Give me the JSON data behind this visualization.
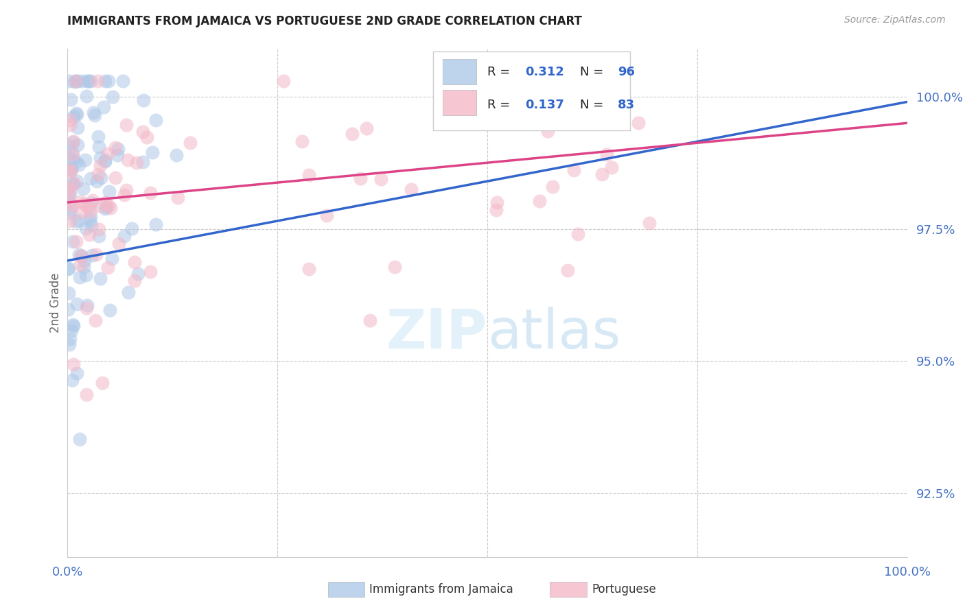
{
  "title": "IMMIGRANTS FROM JAMAICA VS PORTUGUESE 2ND GRADE CORRELATION CHART",
  "source": "Source: ZipAtlas.com",
  "ylabel": "2nd Grade",
  "R1": 0.312,
  "N1": 96,
  "R2": 0.137,
  "N2": 83,
  "color1": "#aec8e8",
  "color2": "#f4b8c8",
  "trendline1_color": "#3366cc",
  "trendline2_color": "#dd4488",
  "legend_label1": "Immigrants from Jamaica",
  "legend_label2": "Portuguese",
  "xmin": 0.0,
  "xmax": 100.0,
  "ymin": 91.3,
  "ymax": 100.9,
  "yticks": [
    92.5,
    95.0,
    97.5,
    100.0
  ],
  "ytick_labels": [
    "92.5%",
    "95.0%",
    "97.5%",
    "100.0%"
  ],
  "xticks": [
    0,
    25,
    50,
    75,
    100
  ],
  "xtick_labels": [
    "0.0%",
    "",
    "",
    "",
    "100.0%"
  ],
  "background_color": "#ffffff",
  "tick_color": "#4472c4",
  "grid_color": "#cccccc",
  "trendline1_start": 96.9,
  "trendline1_end": 99.9,
  "trendline2_start": 98.0,
  "trendline2_end": 99.5
}
